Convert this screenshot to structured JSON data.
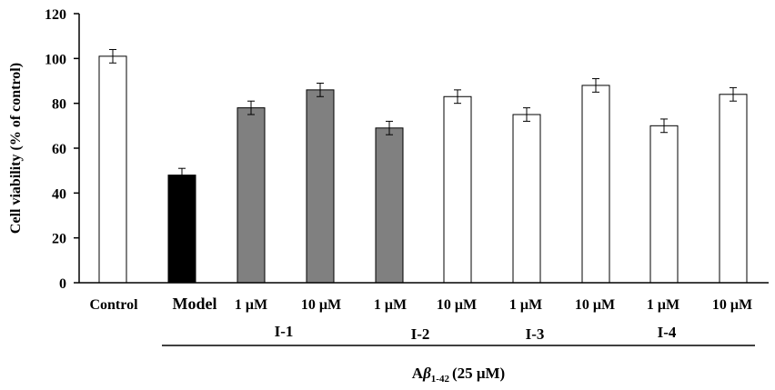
{
  "chart_data": {
    "type": "bar",
    "title": "",
    "xlabel": "",
    "ylabel": "Cell viability (% of control)",
    "ylim": [
      0,
      120
    ],
    "yticks": [
      0,
      20,
      40,
      60,
      80,
      100,
      120
    ],
    "grid": false,
    "categories": [
      "Control",
      "Model",
      "1 μM",
      "10 μM",
      "1 μM",
      "10 μM",
      "1 μM",
      "10 μM",
      "1 μM",
      "10 μM"
    ],
    "values": [
      101,
      48,
      78,
      86,
      69,
      83,
      75,
      88,
      70,
      84
    ],
    "errors": [
      3,
      3,
      3,
      3,
      3,
      3,
      3,
      3,
      3,
      3
    ],
    "bar_colors": [
      "#ffffff",
      "#000000",
      "#808080",
      "#808080",
      "#808080",
      "#ffffff",
      "#ffffff",
      "#ffffff",
      "#ffffff",
      "#ffffff"
    ],
    "groups": [
      {
        "label": "I-1",
        "from": 2,
        "to": 3
      },
      {
        "label": "I-2",
        "from": 4,
        "to": 5
      },
      {
        "label": "I-3",
        "from": 6,
        "to": 7
      },
      {
        "label": "I-4",
        "from": 8,
        "to": 9
      }
    ],
    "treatment_label": {
      "prefix": "A",
      "beta": "β",
      "sub": "1-42",
      "suffix": "(25 μM)"
    }
  }
}
